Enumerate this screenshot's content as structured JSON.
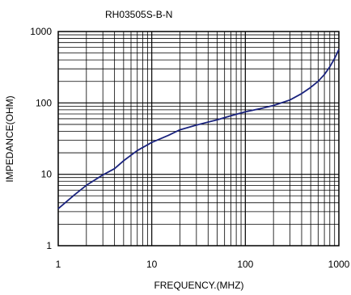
{
  "chart_data": {
    "type": "line",
    "title": "RH03505S-B-N",
    "xlabel": "FREQUENCY.(MHZ)",
    "ylabel": "IMPEDANCE(OHM)",
    "x_scale": "log",
    "y_scale": "log",
    "xlim": [
      1,
      1000
    ],
    "ylim": [
      1,
      1000
    ],
    "x_ticks": [
      "1",
      "10",
      "100",
      "1000"
    ],
    "y_ticks": [
      "1",
      "10",
      "100",
      "1000"
    ],
    "grid": true,
    "colors": {
      "line": "#1a237e",
      "grid": "#000000"
    },
    "series": [
      {
        "x": [
          1,
          1.5,
          2,
          3,
          4,
          5,
          7,
          10,
          15,
          20,
          30,
          50,
          70,
          100,
          150,
          200,
          300,
          400,
          500,
          600,
          700,
          800,
          900,
          1000
        ],
        "y": [
          3.3,
          5.2,
          7.0,
          9.8,
          12.0,
          15.5,
          21.5,
          28.0,
          35.0,
          42.0,
          49.0,
          58.0,
          66.0,
          75.0,
          84.0,
          92.0,
          110.0,
          135.0,
          165.0,
          200.0,
          250.0,
          320.0,
          420.0,
          560.0
        ]
      }
    ]
  }
}
